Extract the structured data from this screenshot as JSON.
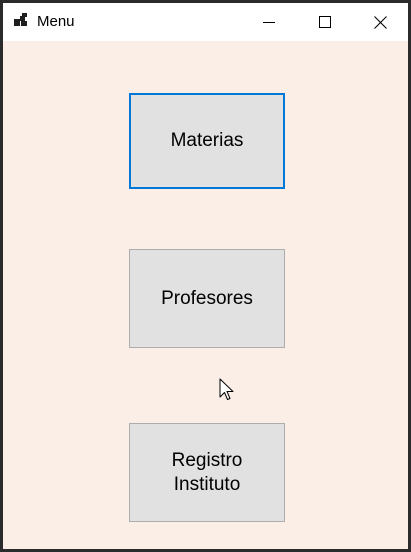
{
  "window": {
    "title": "Menu"
  },
  "icons": {
    "app": "app-window-icon",
    "minimize": "minimize-icon",
    "maximize": "maximize-icon",
    "close": "close-icon",
    "cursor": "mouse-pointer-icon"
  },
  "buttons": {
    "materias": "Materias",
    "profesores": "Profesores",
    "registro": "Registro\nInstituto"
  },
  "colors": {
    "background": "#faeee7",
    "button": "#e1e1e1",
    "focus_border": "#0078d7"
  }
}
